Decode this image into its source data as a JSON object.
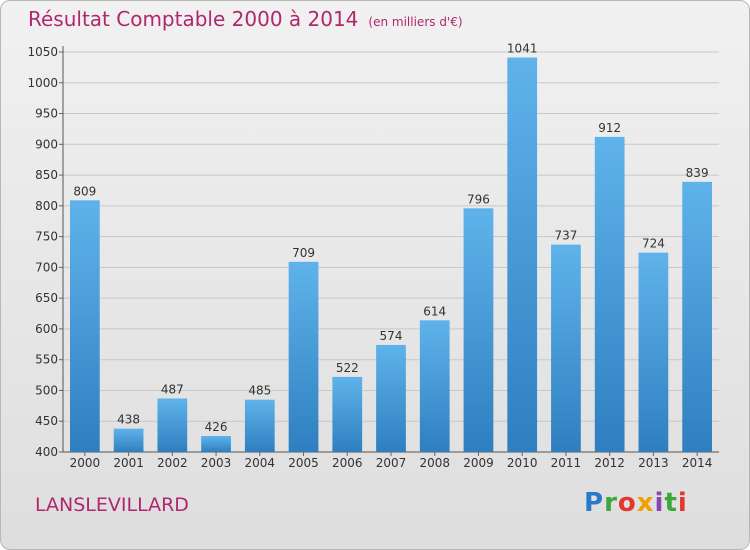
{
  "header": {
    "title": "Résultat Comptable 2000 à 2014",
    "subtitle": "(en milliers d'€)"
  },
  "location": "LANSLEVILLARD",
  "logo": {
    "letters": [
      "P",
      "r",
      "o",
      "x",
      "i",
      "t",
      "i"
    ]
  },
  "colors": {
    "title": "#b0276e",
    "bar_top": "#5fb3ea",
    "bar_bottom": "#2f7fc0",
    "grid": "#c8c8c8"
  },
  "chart_data": {
    "type": "bar",
    "title": "Résultat Comptable 2000 à 2014",
    "subtitle": "(en milliers d'€)",
    "categories": [
      "2000",
      "2001",
      "2002",
      "2003",
      "2004",
      "2005",
      "2006",
      "2007",
      "2008",
      "2009",
      "2010",
      "2011",
      "2012",
      "2013",
      "2014"
    ],
    "values": [
      809,
      438,
      487,
      426,
      485,
      709,
      522,
      574,
      614,
      796,
      1041,
      737,
      912,
      724,
      839
    ],
    "ylim": [
      400,
      1050
    ],
    "yticks": [
      400,
      450,
      500,
      550,
      600,
      650,
      700,
      750,
      800,
      850,
      900,
      950,
      1000,
      1050
    ],
    "grid": true,
    "data_labels": true
  }
}
